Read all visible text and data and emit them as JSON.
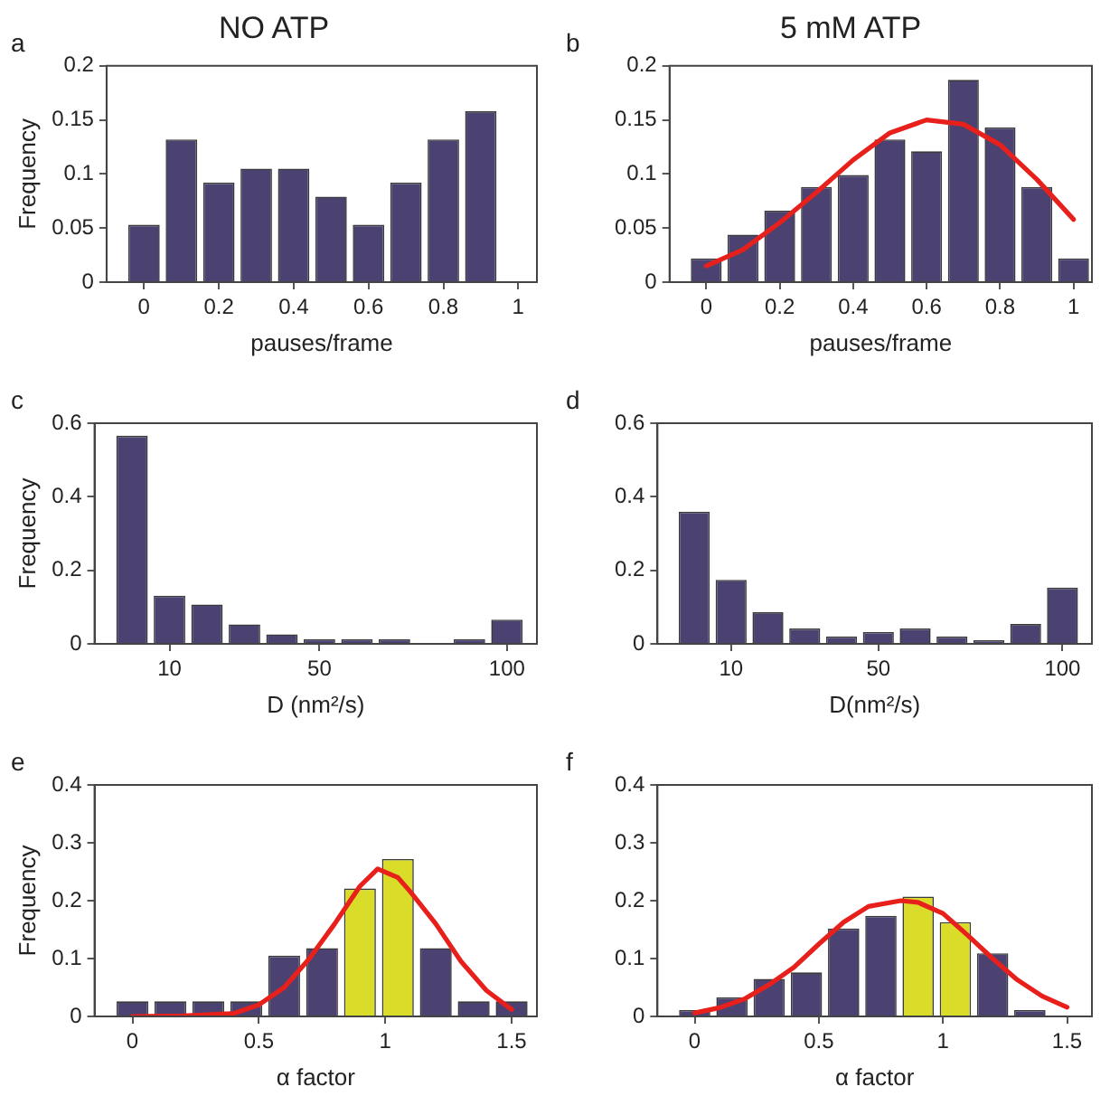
{
  "chart_data": [
    {
      "type": "bar",
      "title": "NO ATP",
      "xlabel": "pauses/frame",
      "ylabel": "Frequency",
      "annotations": [
        "a"
      ],
      "xlim": [
        -0.1,
        1.05
      ],
      "xticks": [
        0,
        0.2,
        0.4,
        0.6,
        0.8,
        1
      ],
      "ylim": [
        0,
        0.2
      ],
      "yticks": [
        0,
        0.05,
        0.1,
        0.15,
        0.2
      ],
      "series": [
        {
          "color": "#4b4272",
          "x": [
            0,
            0.1,
            0.2,
            0.3,
            0.4,
            0.5,
            0.6,
            0.7,
            0.8,
            0.9
          ],
          "values": [
            0.053,
            0.132,
            0.092,
            0.105,
            0.105,
            0.079,
            0.053,
            0.092,
            0.132,
            0.158
          ]
        }
      ]
    },
    {
      "type": "bar",
      "title": "5 mM ATP",
      "xlabel": "pauses/frame",
      "annotations": [
        "b"
      ],
      "xlim": [
        -0.1,
        1.05
      ],
      "xticks": [
        0,
        0.2,
        0.4,
        0.6,
        0.8,
        1
      ],
      "ylim": [
        0,
        0.2
      ],
      "yticks": [
        0,
        0.05,
        0.1,
        0.15,
        0.2
      ],
      "series": [
        {
          "color": "#4b4272",
          "x": [
            0,
            0.1,
            0.2,
            0.3,
            0.4,
            0.5,
            0.6,
            0.7,
            0.8,
            0.9,
            1
          ],
          "values": [
            0.022,
            0.044,
            0.066,
            0.088,
            0.099,
            0.132,
            0.121,
            0.187,
            0.143,
            0.088,
            0.022
          ]
        },
        {
          "type": "line",
          "color": "#e8201c",
          "x": [
            0,
            0.1,
            0.2,
            0.3,
            0.4,
            0.5,
            0.6,
            0.7,
            0.8,
            0.9,
            1
          ],
          "values": [
            0.015,
            0.03,
            0.055,
            0.083,
            0.113,
            0.138,
            0.15,
            0.146,
            0.127,
            0.095,
            0.058
          ]
        }
      ]
    },
    {
      "type": "bar",
      "xlabel": "D (nm²/s)",
      "ylabel": "Frequency",
      "annotations": [
        "c"
      ],
      "xlim": [
        -10,
        108
      ],
      "xticks": [
        10,
        50,
        100
      ],
      "ylim": [
        0,
        0.6
      ],
      "yticks": [
        0,
        0.2,
        0.4,
        0.6
      ],
      "series": [
        {
          "color": "#4b4272",
          "x": [
            0,
            10,
            20,
            30,
            40,
            50,
            60,
            70,
            80,
            90,
            100
          ],
          "values": [
            0.566,
            0.131,
            0.107,
            0.053,
            0.026,
            0.013,
            0.013,
            0.013,
            0,
            0.013,
            0.066
          ]
        }
      ]
    },
    {
      "type": "bar",
      "xlabel": "D(nm²/s)",
      "annotations": [
        "d"
      ],
      "xlim": [
        -10,
        108
      ],
      "xticks": [
        10,
        50,
        100
      ],
      "ylim": [
        0,
        0.6
      ],
      "yticks": [
        0,
        0.2,
        0.4,
        0.6
      ],
      "series": [
        {
          "color": "#4b4272",
          "x": [
            0,
            10,
            20,
            30,
            40,
            50,
            60,
            70,
            80,
            90,
            100
          ],
          "values": [
            0.359,
            0.174,
            0.086,
            0.042,
            0.02,
            0.032,
            0.042,
            0.02,
            0.01,
            0.054,
            0.153
          ]
        }
      ]
    },
    {
      "type": "bar",
      "xlabel": "α factor",
      "ylabel": "Frequency",
      "annotations": [
        "e"
      ],
      "xlim": [
        -0.15,
        1.6
      ],
      "xticks": [
        0,
        0.5,
        1,
        1.5
      ],
      "ylim": [
        0,
        0.4
      ],
      "yticks": [
        0,
        0.1,
        0.2,
        0.3,
        0.4
      ],
      "series": [
        {
          "colors": [
            "#4b4272",
            "#4b4272",
            "#4b4272",
            "#4b4272",
            "#4b4272",
            "#4b4272",
            "#d9dd2a",
            "#d9dd2a",
            "#4b4272",
            "#4b4272",
            "#4b4272"
          ],
          "x": [
            0,
            0.15,
            0.3,
            0.45,
            0.6,
            0.75,
            0.9,
            1.05,
            1.2,
            1.35,
            1.5
          ],
          "values": [
            0.026,
            0.026,
            0.026,
            0.026,
            0.105,
            0.118,
            0.221,
            0.272,
            0.118,
            0.026,
            0.026
          ]
        },
        {
          "type": "line",
          "color": "#e8201c",
          "x": [
            0,
            0.2,
            0.4,
            0.5,
            0.6,
            0.7,
            0.8,
            0.9,
            0.97,
            1.05,
            1.1,
            1.2,
            1.3,
            1.4,
            1.5
          ],
          "values": [
            0,
            0.001,
            0.005,
            0.02,
            0.05,
            0.1,
            0.16,
            0.225,
            0.255,
            0.24,
            0.215,
            0.16,
            0.095,
            0.045,
            0.012
          ]
        }
      ]
    },
    {
      "type": "bar",
      "xlabel": "α factor",
      "annotations": [
        "f"
      ],
      "xlim": [
        -0.15,
        1.6
      ],
      "xticks": [
        0,
        0.5,
        1,
        1.5
      ],
      "ylim": [
        0,
        0.4
      ],
      "yticks": [
        0,
        0.1,
        0.2,
        0.3,
        0.4
      ],
      "series": [
        {
          "colors": [
            "#4b4272",
            "#4b4272",
            "#4b4272",
            "#4b4272",
            "#4b4272",
            "#4b4272",
            "#d9dd2a",
            "#d9dd2a",
            "#4b4272",
            "#4b4272"
          ],
          "x": [
            0,
            0.15,
            0.3,
            0.45,
            0.6,
            0.75,
            0.9,
            1.05,
            1.2,
            1.35
          ],
          "values": [
            0.011,
            0.033,
            0.065,
            0.076,
            0.152,
            0.174,
            0.207,
            0.163,
            0.109,
            0.011
          ]
        },
        {
          "type": "line",
          "color": "#e8201c",
          "x": [
            0,
            0.1,
            0.2,
            0.3,
            0.4,
            0.5,
            0.6,
            0.7,
            0.83,
            0.9,
            1,
            1.1,
            1.2,
            1.3,
            1.4,
            1.5
          ],
          "values": [
            0.006,
            0.015,
            0.03,
            0.055,
            0.085,
            0.125,
            0.163,
            0.19,
            0.2,
            0.197,
            0.178,
            0.14,
            0.1,
            0.063,
            0.035,
            0.016
          ]
        }
      ]
    }
  ]
}
